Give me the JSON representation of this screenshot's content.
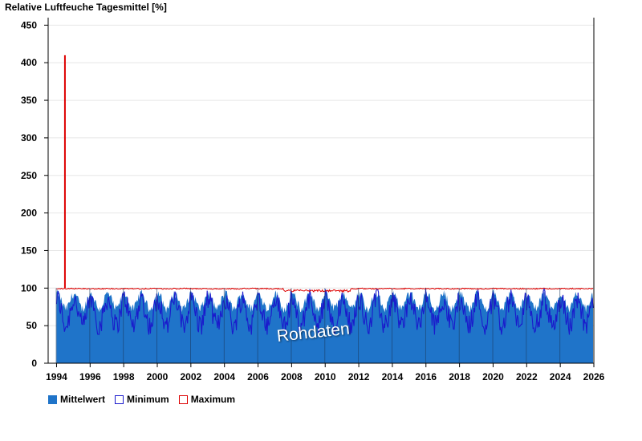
{
  "chart_data": {
    "type": "area",
    "title": "Relative Luftfeuche Tagesmittel [%]",
    "watermark": "Rohdaten",
    "x_range": [
      1993.5,
      2026
    ],
    "ylim": [
      0,
      460
    ],
    "x_ticks": [
      "1994",
      "1996",
      "1998",
      "2000",
      "2002",
      "2004",
      "2006",
      "2008",
      "2010",
      "2012",
      "2014",
      "2016",
      "2018",
      "2020",
      "2022",
      "2024",
      "2026"
    ],
    "y_ticks": [
      "0",
      "50",
      "100",
      "150",
      "200",
      "250",
      "300",
      "350",
      "400",
      "450"
    ],
    "grid": true,
    "legend_position": "bottom-left",
    "spike": {
      "x": 1994.5,
      "y": 410
    },
    "series": [
      {
        "name": "Mittelwert",
        "color": "#1f74c9",
        "typical_range": [
          70,
          95
        ]
      },
      {
        "name": "Minimum",
        "color": "#1a1acc",
        "typical_range": [
          45,
          90
        ]
      },
      {
        "name": "Maximum",
        "color": "#dd0000",
        "typical_range": [
          95,
          100
        ]
      }
    ]
  }
}
